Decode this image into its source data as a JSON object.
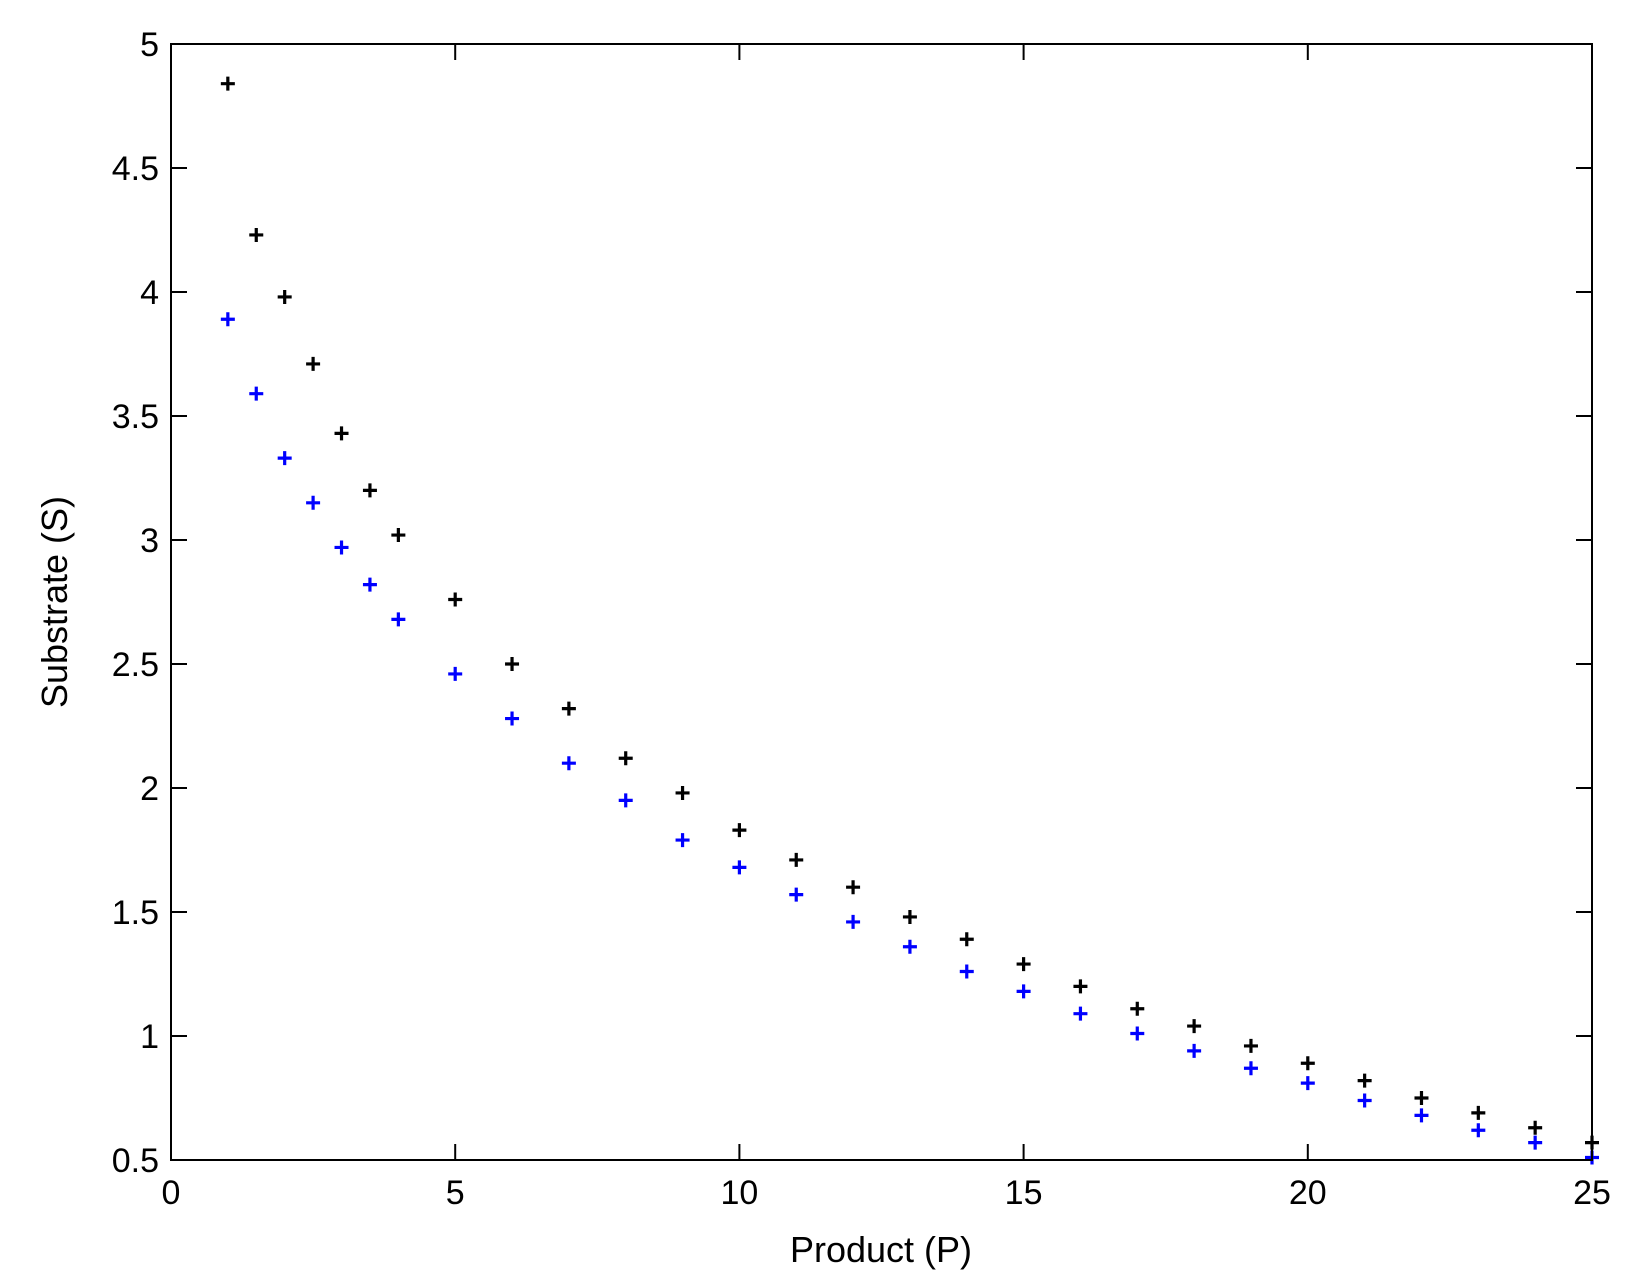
{
  "chart_data": {
    "type": "scatter",
    "xlabel": "Product (P)",
    "ylabel": "Substrate (S)",
    "xlim": [
      0,
      25
    ],
    "ylim": [
      0.5,
      5
    ],
    "xticks": [
      0,
      5,
      10,
      15,
      20,
      25
    ],
    "yticks": [
      0.5,
      1,
      1.5,
      2,
      2.5,
      3,
      3.5,
      4,
      4.5,
      5
    ],
    "xtick_labels": [
      "0",
      "5",
      "10",
      "15",
      "20",
      "25"
    ],
    "ytick_labels": [
      "0.5",
      "1",
      "1.5",
      "2",
      "2.5",
      "3",
      "3.5",
      "4",
      "4.5",
      "5"
    ],
    "grid": false,
    "legend": false,
    "series": [
      {
        "color": "#000000",
        "marker": "+",
        "x": [
          1,
          1.5,
          2,
          2.5,
          3,
          3.5,
          4,
          5,
          6,
          7,
          8,
          9,
          10,
          11,
          12,
          13,
          14,
          15,
          16,
          17,
          18,
          19,
          20,
          21,
          22,
          23,
          24,
          25
        ],
        "y": [
          4.84,
          4.23,
          3.98,
          3.71,
          3.43,
          3.2,
          3.02,
          2.76,
          2.5,
          2.32,
          2.12,
          1.98,
          1.83,
          1.71,
          1.6,
          1.48,
          1.39,
          1.29,
          1.2,
          1.11,
          1.04,
          0.96,
          0.89,
          0.82,
          0.75,
          0.69,
          0.63,
          0.57
        ]
      },
      {
        "color": "#0000ff",
        "marker": "+",
        "x": [
          1,
          1.5,
          2,
          2.5,
          3,
          3.5,
          4,
          5,
          6,
          7,
          8,
          9,
          10,
          11,
          12,
          13,
          14,
          15,
          16,
          17,
          18,
          19,
          20,
          21,
          22,
          23,
          24,
          25
        ],
        "y": [
          3.89,
          3.59,
          3.33,
          3.15,
          2.97,
          2.82,
          2.68,
          2.46,
          2.28,
          2.1,
          1.95,
          1.79,
          1.68,
          1.57,
          1.46,
          1.36,
          1.26,
          1.18,
          1.09,
          1.01,
          0.94,
          0.87,
          0.81,
          0.74,
          0.68,
          0.62,
          0.57,
          0.51
        ]
      }
    ]
  }
}
